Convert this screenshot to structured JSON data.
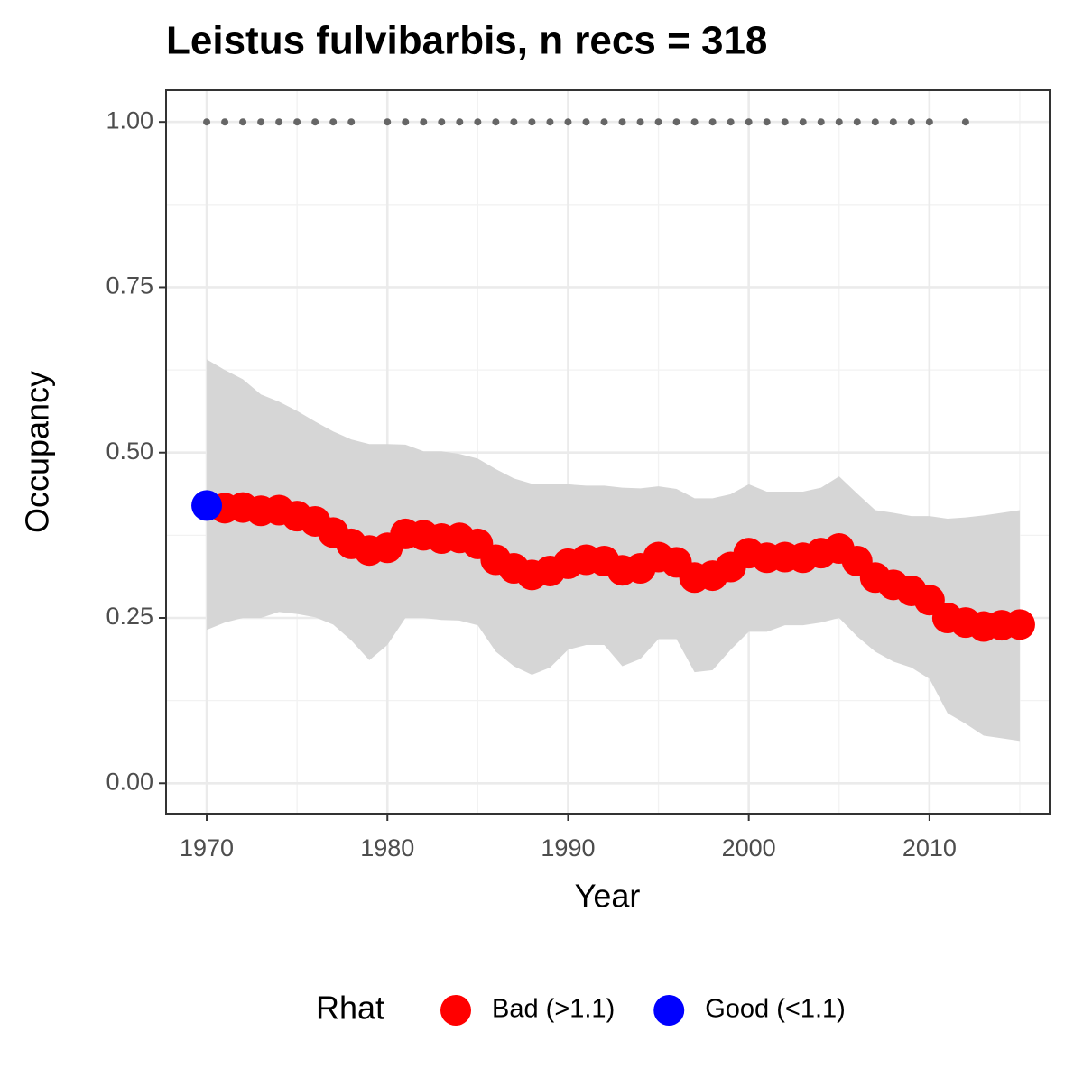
{
  "chart_data": {
    "type": "occupancy",
    "title": "Leistus fulvibarbis, n recs = 318",
    "x_label": "Year",
    "y_label": "Occupancy",
    "x": [
      1970,
      1971,
      1972,
      1973,
      1974,
      1975,
      1976,
      1977,
      1978,
      1979,
      1980,
      1981,
      1982,
      1983,
      1984,
      1985,
      1986,
      1987,
      1988,
      1989,
      1990,
      1991,
      1992,
      1993,
      1994,
      1995,
      1996,
      1997,
      1998,
      1999,
      2000,
      2001,
      2002,
      2003,
      2004,
      2005,
      2006,
      2007,
      2008,
      2009,
      2010,
      2011,
      2012,
      2013,
      2014,
      2015
    ],
    "band": {
      "color": "#d6d6d6",
      "upper": [
        0.641,
        0.625,
        0.611,
        0.588,
        0.577,
        0.563,
        0.547,
        0.532,
        0.52,
        0.513,
        0.513,
        0.512,
        0.502,
        0.502,
        0.498,
        0.491,
        0.475,
        0.461,
        0.453,
        0.452,
        0.452,
        0.45,
        0.45,
        0.447,
        0.446,
        0.449,
        0.445,
        0.431,
        0.431,
        0.437,
        0.452,
        0.441,
        0.441,
        0.441,
        0.447,
        0.464,
        0.438,
        0.413,
        0.409,
        0.404,
        0.404,
        0.4,
        0.402,
        0.405,
        0.409,
        0.413
      ],
      "lower": [
        0.232,
        0.243,
        0.25,
        0.25,
        0.259,
        0.256,
        0.251,
        0.24,
        0.216,
        0.186,
        0.209,
        0.25,
        0.25,
        0.247,
        0.246,
        0.239,
        0.199,
        0.177,
        0.164,
        0.175,
        0.202,
        0.209,
        0.209,
        0.177,
        0.188,
        0.218,
        0.218,
        0.168,
        0.171,
        0.202,
        0.229,
        0.229,
        0.239,
        0.239,
        0.243,
        0.25,
        0.222,
        0.199,
        0.184,
        0.175,
        0.158,
        0.106,
        0.09,
        0.072,
        0.068,
        0.064
      ]
    },
    "legend_title": "Rhat",
    "series": [
      {
        "name": "Bad (>1.1)",
        "color": "#ff0000",
        "values": [
          null,
          0.416,
          0.417,
          0.412,
          0.413,
          0.404,
          0.396,
          0.379,
          0.362,
          0.352,
          0.356,
          0.377,
          0.375,
          0.37,
          0.371,
          0.362,
          0.338,
          0.325,
          0.315,
          0.321,
          0.332,
          0.338,
          0.336,
          0.322,
          0.325,
          0.342,
          0.334,
          0.311,
          0.314,
          0.327,
          0.348,
          0.341,
          0.342,
          0.341,
          0.348,
          0.355,
          0.336,
          0.311,
          0.3,
          0.291,
          0.277,
          0.25,
          0.243,
          0.237,
          0.239,
          0.24
        ]
      },
      {
        "name": "Good (<1.1)",
        "color": "#0000ff",
        "values": [
          0.42,
          null,
          null,
          null,
          null,
          null,
          null,
          null,
          null,
          null,
          null,
          null,
          null,
          null,
          null,
          null,
          null,
          null,
          null,
          null,
          null,
          null,
          null,
          null,
          null,
          null,
          null,
          null,
          null,
          null,
          null,
          null,
          null,
          null,
          null,
          null,
          null,
          null,
          null,
          null,
          null,
          null,
          null,
          null,
          null,
          null
        ]
      }
    ],
    "records": {
      "color": "#666666",
      "x": [
        1970,
        1971,
        1972,
        1973,
        1974,
        1975,
        1976,
        1977,
        1978,
        1980,
        1981,
        1982,
        1983,
        1984,
        1985,
        1986,
        1987,
        1988,
        1989,
        1990,
        1991,
        1992,
        1993,
        1994,
        1995,
        1996,
        1997,
        1998,
        1999,
        2000,
        2001,
        2002,
        2003,
        2004,
        2005,
        2006,
        2007,
        2008,
        2009,
        2010,
        2012
      ],
      "values": [
        1,
        1,
        1,
        1,
        1,
        1,
        1,
        1,
        1,
        1,
        1,
        1,
        1,
        1,
        1,
        1,
        1,
        1,
        1,
        1,
        1,
        1,
        1,
        1,
        1,
        1,
        1,
        1,
        1,
        1,
        1,
        1,
        1,
        1,
        1,
        1,
        1,
        1,
        1,
        1,
        1
      ]
    },
    "xlim": [
      1967.75,
      2016.65
    ],
    "ylim": [
      -0.046,
      1.048
    ],
    "xticks": [
      1970,
      1980,
      1990,
      2000,
      2010
    ],
    "yticks": [
      {
        "value": 0,
        "label": "0.00"
      },
      {
        "value": 0.25,
        "label": "0.25"
      },
      {
        "value": 0.5,
        "label": "0.50"
      },
      {
        "value": 0.75,
        "label": "0.75"
      },
      {
        "value": 1,
        "label": "1.00"
      }
    ],
    "xminor": [
      1975,
      1985,
      1995,
      2005,
      2015
    ],
    "yminor": [
      0.125,
      0.375,
      0.625,
      0.875
    ],
    "grid": true,
    "legend_position": "bottom"
  }
}
